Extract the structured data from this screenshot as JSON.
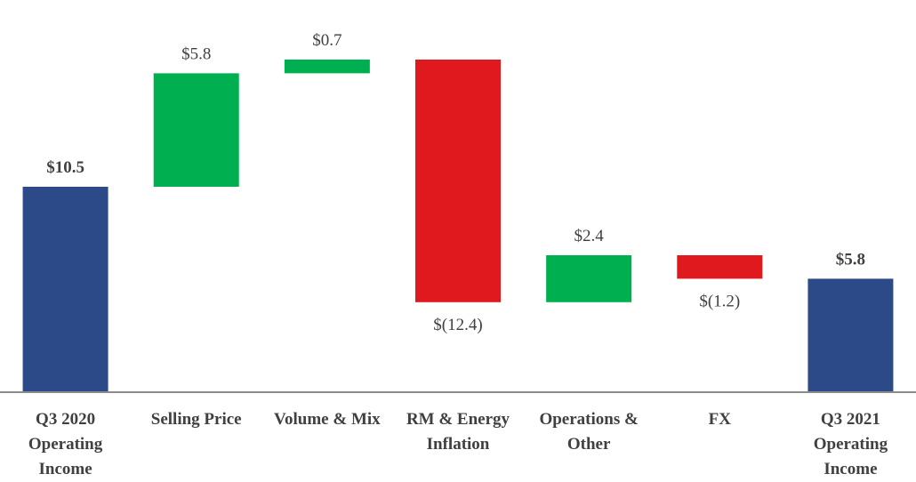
{
  "chart_data": {
    "type": "waterfall",
    "categories": [
      "Q3 2020 Operating Income",
      "Selling Price",
      "Volume & Mix",
      "RM & Energy Inflation",
      "Operations & Other",
      "FX",
      "Q3 2021 Operating Income"
    ],
    "values": [
      10.5,
      5.8,
      0.7,
      -12.4,
      2.4,
      -1.2,
      5.8
    ],
    "value_labels": [
      "$10.5",
      "$5.8",
      "$0.7",
      "$(12.4)",
      "$2.4",
      "$(1.2)",
      "$5.8"
    ],
    "measure": [
      "absolute",
      "relative",
      "relative",
      "relative",
      "relative",
      "relative",
      "total"
    ],
    "colors": [
      "#2b4a87",
      "#00b050",
      "#00b050",
      "#e0191e",
      "#00b050",
      "#e0191e",
      "#2b4a87"
    ],
    "ylim": [
      0,
      20
    ]
  }
}
